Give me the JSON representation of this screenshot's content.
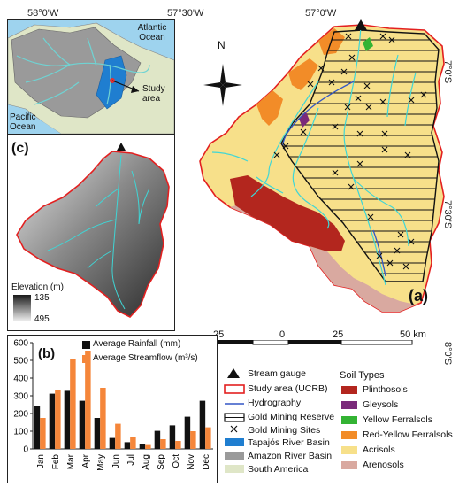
{
  "top_coords": [
    "58°0'W",
    "57°30'W",
    "57°0'W"
  ],
  "right_coords": [
    "7°0'S",
    "7°30'S",
    "8°0'S"
  ],
  "inset_map": {
    "labels": {
      "atlantic": "Atlantic Ocean",
      "pacific": "Pacific Ocean",
      "study": "Study area"
    }
  },
  "north_arrow": {
    "label": "N"
  },
  "panel_labels": {
    "a": "(a)",
    "b": "(b)",
    "c": "(c)"
  },
  "elevation": {
    "title": "Elevation (m)",
    "max": "135",
    "min": "495"
  },
  "scale_bar": {
    "ticks": [
      "25",
      "0",
      "25",
      "50 km"
    ]
  },
  "chart_data": {
    "type": "bar",
    "categories": [
      "Jan",
      "Feb",
      "Mar",
      "Apr",
      "May",
      "Jun",
      "Jul",
      "Aug",
      "Sep",
      "Oct",
      "Nov",
      "Dec"
    ],
    "series": [
      {
        "name": "Average Rainfall (mm)",
        "color": "#111111",
        "values": [
          245,
          312,
          328,
          272,
          175,
          62,
          38,
          28,
          102,
          133,
          182,
          272
        ]
      },
      {
        "name": "Average Streamflow (m³/s)",
        "color": "#f5863a",
        "values": [
          175,
          335,
          505,
          555,
          345,
          142,
          65,
          22,
          55,
          45,
          100,
          122
        ]
      }
    ],
    "ylim": [
      0,
      600
    ],
    "yticks": [
      "0",
      "100",
      "200",
      "300",
      "400",
      "500",
      "600"
    ]
  },
  "legend_left": [
    {
      "label": "Stream gauge",
      "icon": "triangle-icon"
    },
    {
      "label": "Study area (UCRB)",
      "icon": "red-outline-box"
    },
    {
      "label": "Hydrography",
      "icon": "blue-line"
    },
    {
      "label": "Gold Mining Reserve",
      "icon": "hatched-box"
    },
    {
      "label": "Gold Mining Sites",
      "icon": "x-mark"
    },
    {
      "label": "Tapajós River Basin",
      "icon": "blue-box"
    },
    {
      "label": "Amazon River Basin",
      "icon": "grey-box"
    },
    {
      "label": "South America",
      "icon": "light-green-box"
    }
  ],
  "soil_legend": {
    "title": "Soil Types",
    "items": [
      {
        "label": "Plinthosols",
        "color": "#b3261e"
      },
      {
        "label": "Gleysols",
        "color": "#7a2a7a"
      },
      {
        "label": "Yellow Ferralsols",
        "color": "#33b333"
      },
      {
        "label": "Red-Yellow Ferralsols",
        "color": "#f28c28"
      },
      {
        "label": "Acrisols",
        "color": "#f7e08a"
      },
      {
        "label": "Arenosols",
        "color": "#d9a9a0"
      }
    ]
  }
}
